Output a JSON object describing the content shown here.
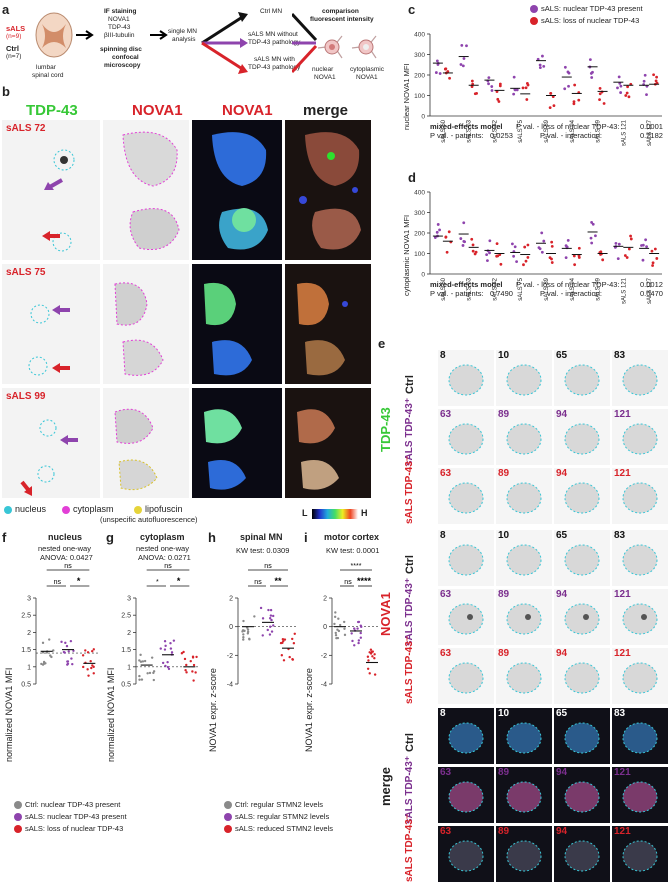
{
  "panel_a": {
    "letter": "a",
    "sals_label": "sALS",
    "sals_n": "(n=9)",
    "ctrl_label": "Ctrl",
    "ctrl_n": "(n=7)",
    "spinal_label_1": "lumbar",
    "spinal_label_2": "spinal cord",
    "if_title": "IF staining",
    "if_items": [
      "NOVA1",
      "TDP-43",
      "βIII-tubulin"
    ],
    "microscopy_1": "spinning disc",
    "microscopy_2": "confocal",
    "microscopy_3": "microscopy",
    "single_mn_1": "single MN",
    "single_mn_2": "analysis",
    "ctrl_mn": "Ctrl MN",
    "sals_without_1": "sALS MN without",
    "sals_without_2": "TDP-43 pathology",
    "sals_with_1": "sALS MN with",
    "sals_with_2": "TDP-43 pathology",
    "comparison_1": "comparison",
    "comparison_2": "fluorescent intensity",
    "nuclear_1": "nuclear",
    "nuclear_2": "NOVA1",
    "cyto_1": "cytoplasmic",
    "cyto_2": "NOVA1"
  },
  "panel_b": {
    "letter": "b",
    "col_tdp": "TDP-43",
    "col_nova1": "NOVA1",
    "col_nova1_heat": "NOVA1",
    "col_merge": "merge",
    "rows": [
      "sALS 72",
      "sALS 75",
      "sALS 99"
    ],
    "legend_nucleus": "nucleus",
    "legend_cytoplasm": "cytoplasm",
    "legend_lipofuscin_1": "lipofuscin",
    "legend_lipofuscin_2": "(unspecific autofluorescence)",
    "lut_low": "L",
    "lut_high": "H"
  },
  "panel_c": {
    "letter": "c",
    "ylabel": "nuclear NOVA1 MFI",
    "legend_present": "sALS: nuclear TDP-43 present",
    "legend_loss": "sALS: loss of nuclear TDP-43",
    "model": "mixed-effects model",
    "p1_label": "P val. - loss of nuclear TDP-43:",
    "p1": "0.0001",
    "p2_label": "P val. - patients:",
    "p2": "0.0253",
    "p3_label": "P val. - interaction:",
    "p3": "0.2182",
    "colors": {
      "present": "#8e44ad",
      "loss": "#d8232a"
    }
  },
  "panel_d": {
    "letter": "d",
    "ylabel": "cytoplasmic NOVA1 MFI",
    "model": "mixed-effects model",
    "p1_label": "P val. - loss of nuclear TDP-43:",
    "p1": "0.0012",
    "p2_label": "P val. - patients:",
    "p2": "0.7490",
    "p3_label": "P val. - interaction:",
    "p3": "0.0470"
  },
  "panel_e": {
    "letter": "e",
    "stain_tdp": "TDP-43",
    "stain_nova1": "NOVA1",
    "stain_merge": "merge",
    "row_ctrl": "Ctrl",
    "row_sals": "sALS",
    "row_plus": "TDP-43⁺",
    "row_minus": "TDP-43⁻",
    "ctrl_ids": [
      "8",
      "10",
      "65",
      "83"
    ],
    "plus_ids": [
      "63",
      "89",
      "94",
      "121"
    ],
    "minus_ids": [
      "63",
      "89",
      "94",
      "121"
    ]
  },
  "panel_f": {
    "letter": "f",
    "title": "nucleus",
    "sub1": "nested one-way",
    "sub2": "ANOVA: 0.0427",
    "ylabel": "normalized NOVA1 MFI",
    "sig_top": "ns",
    "sig_left": "ns",
    "sig_right": "*"
  },
  "panel_g": {
    "letter": "g",
    "title": "cytoplasm",
    "sub1": "nested one-way",
    "sub2": "ANOVA: 0.0271",
    "ylabel": "normalized NOVA1 MFI",
    "sig_top": "ns",
    "sig_left": "*",
    "sig_right": "*"
  },
  "panel_h": {
    "letter": "h",
    "title": "spinal MN",
    "sub": "KW test: 0.0309",
    "ylabel": "NOVA1 expr. z-score",
    "sig_top": "ns",
    "sig_left": "ns",
    "sig_right": "**"
  },
  "panel_i": {
    "letter": "i",
    "title": "motor cortex",
    "sub": "KW test: 0.0001",
    "ylabel": "NOVA1 expr. z-score",
    "sig_top": "****",
    "sig_left": "ns",
    "sig_right": "****"
  },
  "legend_fg": [
    {
      "text": "Ctrl: nuclear TDP-43 present",
      "color": "#8a8a8a"
    },
    {
      "text": "sALS: nuclear TDP-43 present",
      "color": "#8e44ad"
    },
    {
      "text": "sALS: loss of nuclear TDP-43",
      "color": "#d8232a"
    }
  ],
  "legend_hi": [
    {
      "text": "Ctrl: regular STMN2 levels",
      "color": "#8a8a8a"
    },
    {
      "text": "sALS: regular STMN2 levels",
      "color": "#8e44ad"
    },
    {
      "text": "sALS: reduced STMN2 levels",
      "color": "#d8232a"
    }
  ],
  "chart_data": [
    {
      "type": "scatter",
      "panel": "c",
      "ylabel": "nuclear NOVA1 MFI",
      "ylim": [
        0,
        400
      ],
      "yticks": [
        0,
        100,
        200,
        300,
        400
      ],
      "categories": [
        "sALS 60",
        "sALS 63",
        "sALS 72",
        "sALS 75",
        "sALS 89",
        "sALS 94",
        "sALS 99",
        "sALS 121",
        "sALS 127"
      ],
      "series": [
        {
          "name": "sALS: nuclear TDP-43 present",
          "means": [
            258,
            290,
            175,
            135,
            270,
            190,
            240,
            165,
            150
          ]
        },
        {
          "name": "sALS: loss of nuclear TDP-43",
          "means": [
            210,
            150,
            125,
            108,
            100,
            110,
            120,
            150,
            155
          ]
        }
      ]
    },
    {
      "type": "scatter",
      "panel": "d",
      "ylabel": "cytoplasmic NOVA1 MFI",
      "ylim": [
        0,
        400
      ],
      "yticks": [
        0,
        100,
        200,
        300,
        400
      ],
      "categories": [
        "sALS 60",
        "sALS 63",
        "sALS 72",
        "sALS 75",
        "sALS 89",
        "sALS 94",
        "sALS 99",
        "sALS 121",
        "sALS 127"
      ],
      "series": [
        {
          "name": "sALS: nuclear TDP-43 present",
          "means": [
            185,
            195,
            115,
            105,
            150,
            125,
            205,
            135,
            125
          ]
        },
        {
          "name": "sALS: loss of nuclear TDP-43",
          "means": [
            160,
            130,
            100,
            95,
            100,
            95,
            100,
            130,
            100
          ]
        }
      ]
    },
    {
      "type": "scatter",
      "panel": "f",
      "ylabel": "normalized NOVA1 MFI",
      "ylim": [
        0.5,
        3.0
      ],
      "yticks": [
        0.5,
        1.0,
        1.5,
        2.0,
        2.5,
        3.0
      ],
      "categories": [
        "Ctrl: nuclear TDP-43 present",
        "sALS: nuclear TDP-43 present",
        "sALS: loss of nuclear TDP-43"
      ],
      "means": [
        1.45,
        1.5,
        1.1
      ]
    },
    {
      "type": "scatter",
      "panel": "g",
      "ylabel": "normalized NOVA1 MFI",
      "ylim": [
        0.5,
        3.0
      ],
      "yticks": [
        0.5,
        1.0,
        1.5,
        2.0,
        2.5,
        3.0
      ],
      "categories": [
        "Ctrl: nuclear TDP-43 present",
        "sALS: nuclear TDP-43 present",
        "sALS: loss of nuclear TDP-43"
      ],
      "means": [
        1.05,
        1.35,
        1.0
      ]
    },
    {
      "type": "scatter",
      "panel": "h",
      "ylabel": "NOVA1 expr. z-score",
      "ylim": [
        -4,
        2
      ],
      "yticks": [
        -4,
        -2,
        0,
        2
      ],
      "categories": [
        "Ctrl: regular STMN2 levels",
        "sALS: regular STMN2 levels",
        "sALS: reduced STMN2 levels"
      ],
      "means": [
        0.0,
        0.3,
        -1.5
      ]
    },
    {
      "type": "scatter",
      "panel": "i",
      "ylabel": "NOVA1 expr. z-score",
      "ylim": [
        -4,
        2
      ],
      "yticks": [
        -4,
        -2,
        0,
        2
      ],
      "categories": [
        "Ctrl: regular STMN2 levels",
        "sALS: regular STMN2 levels",
        "sALS: reduced STMN2 levels"
      ],
      "means": [
        0.0,
        -0.3,
        -2.5
      ]
    }
  ]
}
